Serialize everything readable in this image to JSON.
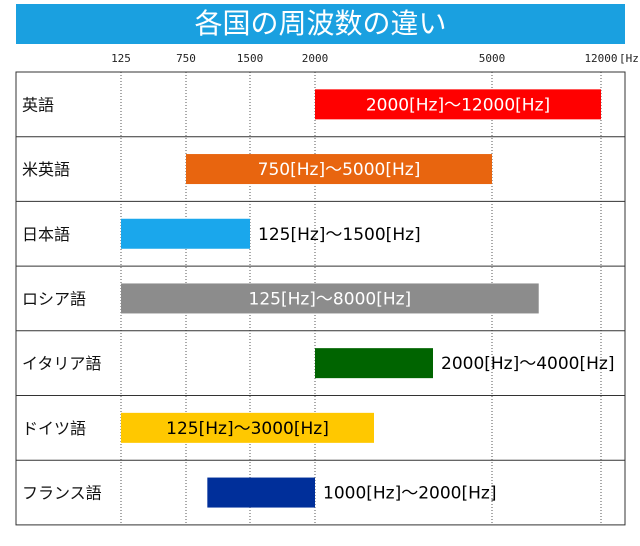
{
  "title": "各国の周波数の違い",
  "chart_data": {
    "type": "bar",
    "orientation": "horizontal-range",
    "title": "各国の周波数の違い",
    "x_unit_label": "[Hz]",
    "x_ticks": [
      {
        "label": "125",
        "value": 125
      },
      {
        "label": "750",
        "value": 750
      },
      {
        "label": "1500",
        "value": 1500
      },
      {
        "label": "2000",
        "value": 2000
      },
      {
        "label": "5000",
        "value": 5000
      },
      {
        "label": "12000",
        "value": 12000
      }
    ],
    "grid": true,
    "series": [
      {
        "category": "英語",
        "start": 2000,
        "end": 12000,
        "label": "2000[Hz]～12000[Hz]",
        "color": "#ff0000",
        "label_inside": true,
        "label_color": "#ffffff"
      },
      {
        "category": "米英語",
        "start": 750,
        "end": 5000,
        "label": "750[Hz]～5000[Hz]",
        "color": "#e8650f",
        "label_inside": true,
        "label_color": "#ffffff"
      },
      {
        "category": "日本語",
        "start": 125,
        "end": 1500,
        "label": "125[Hz]～1500[Hz]",
        "color": "#1aa7ec",
        "label_inside": false,
        "label_color": "#000000"
      },
      {
        "category": "ロシア語",
        "start": 125,
        "end": 8000,
        "label": "125[Hz]～8000[Hz]",
        "color": "#8c8c8c",
        "label_inside": true,
        "label_color": "#ffffff"
      },
      {
        "category": "イタリア語",
        "start": 2000,
        "end": 4000,
        "label": "2000[Hz]～4000[Hz]",
        "color": "#006400",
        "label_inside": false,
        "label_color": "#000000"
      },
      {
        "category": "ドイツ語",
        "start": 125,
        "end": 3000,
        "label": "125[Hz]～3000[Hz]",
        "color": "#ffc800",
        "label_inside": true,
        "label_color": "#000000"
      },
      {
        "category": "フランス語",
        "start": 1000,
        "end": 2000,
        "label": "1000[Hz]～2000[Hz]",
        "color": "#002f9a",
        "label_inside": false,
        "label_color": "#000000"
      }
    ]
  }
}
